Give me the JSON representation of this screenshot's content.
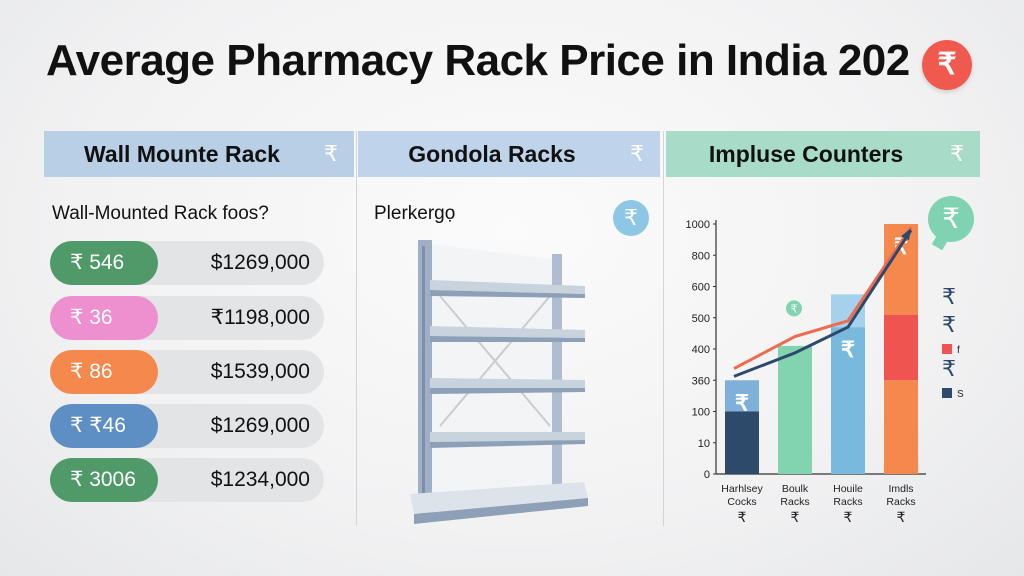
{
  "title": "Average Pharmacy Rack Price in India 202",
  "title_badge_icon": "₹",
  "columns": [
    {
      "header": "Wall Mounte Rack",
      "icon": "₹",
      "color": "#b9cfe6"
    },
    {
      "header": "Gondola Racks",
      "icon": "₹",
      "color": "#bfd3ea"
    },
    {
      "header": "Impluse Counters",
      "icon": "₹",
      "color": "#a8dcc9"
    }
  ],
  "wall": {
    "subheading": "Wall-Mounted Rack foos?",
    "rows": [
      {
        "pill": "₹ 546",
        "price": "$1269,000",
        "color": "#4f9a68"
      },
      {
        "pill": "₹ 36",
        "price": "₹1198,000",
        "color": "#ee8fd0"
      },
      {
        "pill": "₹ 86",
        "price": "$1539,000",
        "color": "#f5894d"
      },
      {
        "pill": "₹ ₹46",
        "price": "$1269,000",
        "color": "#5d8fc4"
      },
      {
        "pill": "₹ 3006",
        "price": "$1234,000",
        "color": "#4f9a68"
      }
    ]
  },
  "gondola": {
    "subheading": "Plerkergọ",
    "icon": "₹",
    "image": "gondola-shelf"
  },
  "chart_data": {
    "type": "bar",
    "y_tick_labels": [
      "0",
      "10",
      "100",
      "360",
      "400",
      "500",
      "600",
      "800",
      "1000"
    ],
    "categories": [
      "Harhlsey Cocks",
      "Boulk Racks",
      "Houile Racks",
      "Imdls Racks"
    ],
    "category_icons": [
      "₹",
      "₹",
      "₹",
      "₹"
    ],
    "values": [
      360,
      410,
      575,
      1000
    ],
    "bar_segments": [
      [
        {
          "value": 100,
          "color": "#2e4a6b"
        },
        {
          "value": 360,
          "color": "#7eb0da",
          "label": "₹"
        }
      ],
      [
        {
          "value": 410,
          "color": "#82d4b0"
        }
      ],
      [
        {
          "value": 470,
          "color": "#79b9dd",
          "label": "₹"
        },
        {
          "value": 575,
          "color": "#a5d1ec"
        }
      ],
      [
        {
          "value": 360,
          "color": "#f5894d"
        },
        {
          "value": 510,
          "color": "#ef5450"
        },
        {
          "value": 1000,
          "color": "#f5894d",
          "label": "₹"
        }
      ]
    ],
    "lines": [
      {
        "color": "#ee6b4f",
        "values": [
          375,
          440,
          490,
          980
        ]
      },
      {
        "color": "#2e4a6b",
        "values": [
          365,
          395,
          470,
          960
        ]
      }
    ],
    "line_marker_icon": "₹",
    "bubble_icon": "₹",
    "legend": [
      {
        "icon": "₹",
        "color": "#2e4a6b"
      },
      {
        "icon": "₹",
        "color": "#2e4a6b"
      },
      {
        "swatch": "#ef5450",
        "label": "f"
      },
      {
        "icon": "₹",
        "color": "#2e4a6b"
      },
      {
        "swatch": "#2e4a6b",
        "label": "S"
      }
    ]
  }
}
